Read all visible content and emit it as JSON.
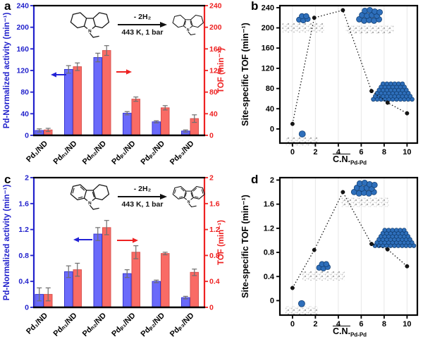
{
  "figure": {
    "panels": [
      {
        "letter": "a"
      },
      {
        "letter": "b"
      },
      {
        "letter": "c"
      },
      {
        "letter": "d"
      }
    ]
  },
  "colors": {
    "activity_blue": "#2222cc",
    "tof_red": "#ee2222",
    "bar_blue_fill": "#6a6afa",
    "bar_blue_edge": "#3a3ad0",
    "bar_red_fill": "#f96b65",
    "bar_red_edge": "#d9534f",
    "error_bar": "#6e6e6e",
    "scatter_black": "#151515",
    "grid_gray": "#e6e6e6",
    "atom_blue": "#2e6fbb",
    "atom_edge": "#123f73"
  },
  "chart_data": [
    {
      "panel": "a",
      "type": "bar",
      "categories": [
        "Pd₁/ND",
        "Pdₙ₁/ND",
        "Pdₙ₂/ND",
        "Pdₚ₁/ND",
        "Pdₚ₂/ND",
        "Pdₚ₃/ND"
      ],
      "series": [
        {
          "name": "Pd-Normalized activity",
          "axis": "left",
          "values": [
            9,
            122,
            144,
            41,
            25,
            8
          ],
          "errors": [
            3,
            7,
            8,
            3,
            2,
            2
          ]
        },
        {
          "name": "TOF",
          "axis": "right",
          "values": [
            10,
            127,
            157,
            67,
            51,
            31
          ],
          "errors": [
            3,
            7,
            9,
            4,
            4,
            7
          ]
        }
      ],
      "ylabel_left": "Pd-Normalized activity (min⁻¹)",
      "ylabel_right": "TOF (min⁻¹)",
      "ylim": [
        0,
        240
      ],
      "yticks": [
        0,
        40,
        80,
        120,
        160,
        200,
        240
      ],
      "reaction": {
        "hydrogen_loss": "- 2H₂",
        "conditions": "443 K, 1 bar",
        "reactant": "N-ethyl-dodecahydrocarbazole",
        "product": "N-ethyl-octahydrocarbazole"
      }
    },
    {
      "panel": "b",
      "type": "scatter",
      "x": [
        0,
        1.9,
        4.4,
        6.9,
        8.3,
        10
      ],
      "y": [
        10,
        220,
        235,
        75,
        52,
        31
      ],
      "xlabel_main": "C.N.",
      "xlabel_sub": "Pd-Pd",
      "ylabel": "Site-specific TOF (min⁻¹)",
      "xlim": [
        -1.1,
        10.9
      ],
      "ylim": [
        -28,
        244
      ],
      "xticks": [
        0,
        2,
        4,
        6,
        8,
        10
      ],
      "yticks": [
        0,
        40,
        80,
        120,
        160,
        200,
        240
      ],
      "line_style": "dotted",
      "grid": "vertical",
      "insets": [
        {
          "name": "single-pd-atom-on-support",
          "type": "atom",
          "x": 0.85,
          "y": -10
        },
        {
          "name": "pd4-cluster-on-support",
          "type": "cluster-small",
          "x": 0.95,
          "y": 219
        },
        {
          "name": "pd13-cluster-on-support",
          "type": "cluster-large",
          "x": 6.75,
          "y": 224
        },
        {
          "name": "pd-nanoparticle",
          "type": "particle",
          "x": 8.75,
          "y": 74
        }
      ]
    },
    {
      "panel": "c",
      "type": "bar",
      "categories": [
        "Pd₁/ND",
        "Pdₙ₁/ND",
        "Pdₙ₂/ND",
        "Pdₚ₁/ND",
        "Pdₚ₂/ND",
        "Pdₚ₃/ND"
      ],
      "series": [
        {
          "name": "Pd-Normalized activity",
          "axis": "left",
          "values": [
            0.2,
            0.55,
            1.13,
            0.52,
            0.4,
            0.15
          ],
          "errors": [
            0.1,
            0.09,
            0.1,
            0.06,
            0.02,
            0.02
          ]
        },
        {
          "name": "TOF",
          "axis": "right",
          "values": [
            0.2,
            0.58,
            1.23,
            0.85,
            0.83,
            0.54
          ],
          "errors": [
            0.1,
            0.1,
            0.11,
            0.1,
            0.02,
            0.05
          ]
        }
      ],
      "ylabel_left": "Pd-Normalized activity (min⁻¹)",
      "ylabel_right": "TOF (min⁻¹)",
      "ylim": [
        0,
        2
      ],
      "yticks": [
        0,
        0.4,
        0.8,
        1.2,
        1.6,
        2
      ],
      "reaction": {
        "hydrogen_loss": "- 2H₂",
        "conditions": "443 K, 1 bar",
        "reactant": "N-ethyl-tetrahydrocarbazole",
        "product": "N-ethylcarbazole"
      }
    },
    {
      "panel": "d",
      "type": "scatter",
      "x": [
        0,
        1.9,
        4.4,
        6.9,
        8.3,
        10
      ],
      "y": [
        0.21,
        0.84,
        1.8,
        0.94,
        0.85,
        0.57
      ],
      "xlabel_main": "C.N.",
      "xlabel_sub": "Pd-Pd",
      "ylabel": "Site-specific TOF (min⁻¹)",
      "xlim": [
        -1.1,
        10.9
      ],
      "ylim": [
        -0.24,
        2.04
      ],
      "xticks": [
        0,
        2,
        4,
        6,
        8,
        10
      ],
      "yticks": [
        0,
        0.4,
        0.8,
        1.2,
        1.6,
        2
      ],
      "line_style": "dotted",
      "grid": "vertical",
      "insets": [
        {
          "name": "single-pd-atom-on-support",
          "type": "atom",
          "x": 0.8,
          "y": -0.05
        },
        {
          "name": "pd4-cluster-on-support",
          "type": "cluster-small",
          "x": 2.7,
          "y": 0.57
        },
        {
          "name": "pd13-cluster-on-support",
          "type": "cluster-large",
          "x": 6.3,
          "y": 1.86
        },
        {
          "name": "pd-nanoparticle",
          "type": "particle",
          "x": 8.9,
          "y": 1.04
        }
      ]
    }
  ]
}
